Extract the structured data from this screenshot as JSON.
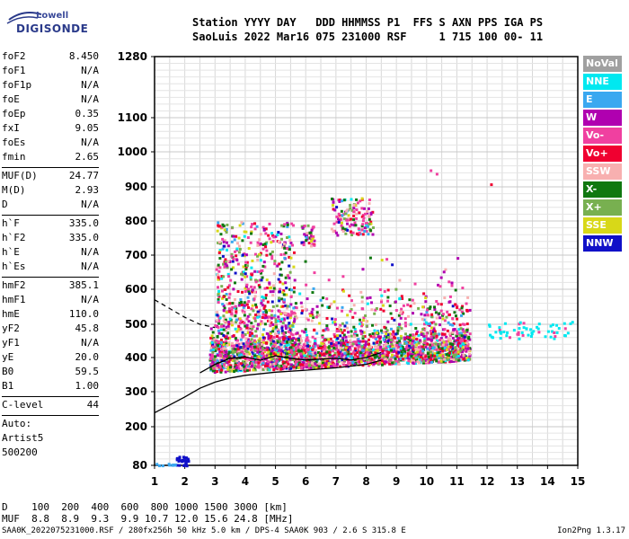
{
  "logo": {
    "line1": "Lowell",
    "line2": "DIGISONDE"
  },
  "header": {
    "line1": "Station YYYY DAY   DDD HHMMSS P1  FFS S AXN PPS IGA PS",
    "line2": "SaoLuis 2022 Mar16 075 231000 RSF     1 715 100 00- 11"
  },
  "params": [
    {
      "k": "foF2",
      "v": "8.450"
    },
    {
      "k": "foF1",
      "v": "N/A"
    },
    {
      "k": "foF1p",
      "v": "N/A"
    },
    {
      "k": "foE",
      "v": "N/A"
    },
    {
      "k": "foEp",
      "v": "0.35"
    },
    {
      "k": "fxI",
      "v": "9.05"
    },
    {
      "k": "foEs",
      "v": "N/A"
    },
    {
      "k": "fmin",
      "v": "2.65"
    },
    {
      "k": "MUF(D)",
      "v": "24.77"
    },
    {
      "k": "M(D)",
      "v": "2.93"
    },
    {
      "k": "D",
      "v": "N/A"
    },
    {
      "k": "h`F",
      "v": "335.0"
    },
    {
      "k": "h`F2",
      "v": "335.0"
    },
    {
      "k": "h`E",
      "v": "N/A"
    },
    {
      "k": "h`Es",
      "v": "N/A"
    },
    {
      "k": "hmF2",
      "v": "385.1"
    },
    {
      "k": "hmF1",
      "v": "N/A"
    },
    {
      "k": "hmE",
      "v": "110.0"
    },
    {
      "k": "yF2",
      "v": "45.8"
    },
    {
      "k": "yF1",
      "v": "N/A"
    },
    {
      "k": "yE",
      "v": "20.0"
    },
    {
      "k": "B0",
      "v": "59.5"
    },
    {
      "k": "B1",
      "v": "1.00"
    },
    {
      "k": "C-level",
      "v": "44"
    }
  ],
  "auto": {
    "line1": "Auto:",
    "line2": "Artist5",
    "line3": "500200"
  },
  "legend": [
    {
      "label": "NoVal",
      "color": "#a0a0a0"
    },
    {
      "label": "NNE",
      "color": "#00e8f0"
    },
    {
      "label": "E",
      "color": "#3aa8f0"
    },
    {
      "label": "W",
      "color": "#b000b0"
    },
    {
      "label": "Vo-",
      "color": "#f040a0"
    },
    {
      "label": "Vo+",
      "color": "#f00030"
    },
    {
      "label": "SSW",
      "color": "#f8b0b0"
    },
    {
      "label": "X-",
      "color": "#107810"
    },
    {
      "label": "X+",
      "color": "#78b050"
    },
    {
      "label": "SSE",
      "color": "#d8d818"
    },
    {
      "label": "NNW",
      "color": "#1010c8"
    }
  ],
  "muf_table": {
    "d_row": "D    100  200  400  600  800 1000 1500 3000 [km]",
    "muf_row": "MUF  8.8  8.9  9.3  9.9 10.7 12.0 15.6 24.8 [MHz]"
  },
  "footer": {
    "left": "SAA0K_2022075231000.RSF / 280fx256h 50 kHz 5.0 km / DPS-4 SAA0K 903 / 2.6 S 315.8 E",
    "right": "Ion2Png 1.3.17"
  },
  "chart_data": {
    "type": "scatter",
    "title": "",
    "xlabel": "",
    "ylabel": "",
    "xlim": [
      1,
      15
    ],
    "ylim": [
      80,
      1280
    ],
    "y_scale": "log-like ionogram height scale",
    "x_ticks": [
      1,
      2,
      3,
      4,
      5,
      6,
      7,
      8,
      9,
      10,
      11,
      12,
      13,
      14,
      15
    ],
    "y_ticks": [
      80,
      200,
      300,
      400,
      500,
      600,
      700,
      800,
      900,
      1000,
      1100,
      1280
    ],
    "grid": true,
    "traces": {
      "virtual_height_profile": [
        [
          1,
          240
        ],
        [
          1.5,
          262
        ],
        [
          2,
          285
        ],
        [
          2.5,
          310
        ],
        [
          3,
          328
        ],
        [
          3.5,
          340
        ],
        [
          4,
          348
        ],
        [
          5,
          357
        ],
        [
          6,
          363
        ],
        [
          7,
          370
        ],
        [
          8,
          380
        ],
        [
          8.5,
          392
        ]
      ],
      "true_height_profile": [
        [
          2.5,
          355
        ],
        [
          3,
          380
        ],
        [
          3.5,
          398
        ],
        [
          4,
          402
        ],
        [
          4.5,
          392
        ],
        [
          5,
          405
        ],
        [
          5.5,
          398
        ],
        [
          6,
          393
        ],
        [
          7,
          398
        ],
        [
          7.5,
          393
        ],
        [
          8,
          400
        ],
        [
          8.5,
          415
        ]
      ],
      "extrapolated_dashed": [
        [
          1,
          570
        ],
        [
          1.5,
          545
        ],
        [
          2,
          520
        ],
        [
          2.5,
          500
        ],
        [
          3,
          490
        ]
      ]
    }
  }
}
